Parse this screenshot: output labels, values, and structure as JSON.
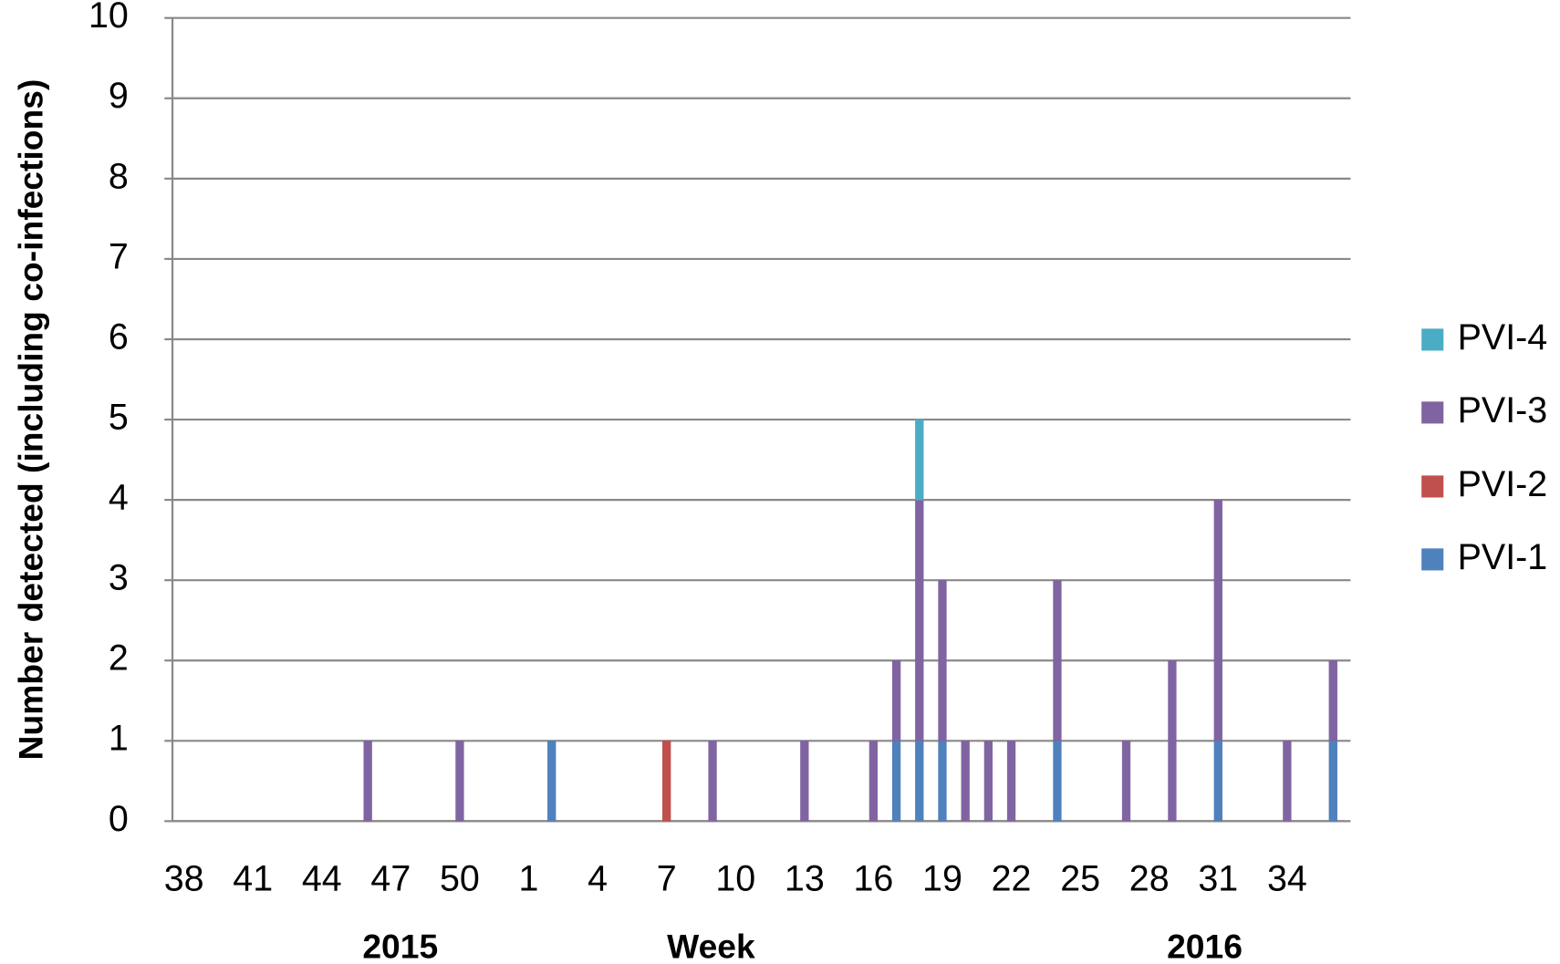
{
  "chart_data": {
    "type": "stacked-bar",
    "y_label": "Number detected (including co-infections)",
    "x_label": "Week",
    "year_labels": [
      "2015",
      "2016"
    ],
    "categories": [
      "38",
      null,
      null,
      "41",
      null,
      null,
      "44",
      null,
      null,
      "47",
      null,
      null,
      "50",
      null,
      null,
      "1",
      null,
      null,
      "4",
      null,
      null,
      "7",
      null,
      null,
      "10",
      null,
      null,
      "13",
      null,
      null,
      "16",
      null,
      null,
      "19",
      null,
      null,
      "22",
      null,
      null,
      "25",
      null,
      null,
      "28",
      null,
      null,
      "31",
      null,
      null,
      "34",
      null,
      null
    ],
    "series": [
      {
        "name": "PVI-1",
        "color": "#4f81bd",
        "values": [
          0,
          0,
          0,
          0,
          0,
          0,
          0,
          0,
          0,
          0,
          0,
          0,
          0,
          0,
          0,
          0,
          1,
          0,
          0,
          0,
          0,
          0,
          0,
          0,
          0,
          0,
          0,
          0,
          0,
          0,
          0,
          1,
          1,
          1,
          0,
          0,
          0,
          0,
          1,
          0,
          0,
          0,
          0,
          0,
          0,
          1,
          0,
          0,
          0,
          0,
          1
        ]
      },
      {
        "name": "PVI-2",
        "color": "#c0504d",
        "values": [
          0,
          0,
          0,
          0,
          0,
          0,
          0,
          0,
          0,
          0,
          0,
          0,
          0,
          0,
          0,
          0,
          0,
          0,
          0,
          0,
          0,
          1,
          0,
          0,
          0,
          0,
          0,
          0,
          0,
          0,
          0,
          0,
          0,
          0,
          0,
          0,
          0,
          0,
          0,
          0,
          0,
          0,
          0,
          0,
          0,
          0,
          0,
          0,
          0,
          0,
          0
        ]
      },
      {
        "name": "PVI-3",
        "color": "#8064a2",
        "values": [
          0,
          0,
          0,
          0,
          0,
          0,
          0,
          0,
          1,
          0,
          0,
          0,
          1,
          0,
          0,
          0,
          0,
          0,
          0,
          0,
          0,
          0,
          0,
          1,
          0,
          0,
          0,
          1,
          0,
          0,
          1,
          1,
          3,
          2,
          1,
          1,
          1,
          0,
          2,
          0,
          0,
          1,
          0,
          2,
          0,
          3,
          0,
          0,
          1,
          0,
          1
        ]
      },
      {
        "name": "PVI-4",
        "color": "#4bacc6",
        "values": [
          0,
          0,
          0,
          0,
          0,
          0,
          0,
          0,
          0,
          0,
          0,
          0,
          0,
          0,
          0,
          0,
          0,
          0,
          0,
          0,
          0,
          0,
          0,
          0,
          0,
          0,
          0,
          0,
          0,
          0,
          0,
          0,
          1,
          0,
          0,
          0,
          0,
          0,
          0,
          0,
          0,
          0,
          0,
          0,
          0,
          0,
          0,
          0,
          0,
          0,
          0
        ]
      }
    ],
    "ylim": [
      0,
      10
    ],
    "yticks": [
      0,
      1,
      2,
      3,
      4,
      5,
      6,
      7,
      8,
      9,
      10
    ],
    "grid": true,
    "legend": "right"
  }
}
